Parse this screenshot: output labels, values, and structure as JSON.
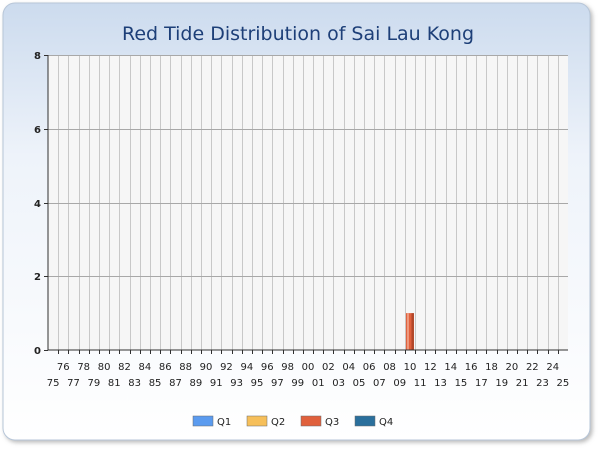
{
  "chart_data": {
    "type": "bar",
    "stacked": true,
    "title": "Red Tide Distribution of Sai Lau Kong",
    "xlabel": "",
    "ylabel": "",
    "ylim": [
      0,
      8
    ],
    "yticks": [
      "0",
      "2",
      "4",
      "6",
      "8"
    ],
    "categories": [
      "75",
      "76",
      "77",
      "78",
      "79",
      "80",
      "81",
      "82",
      "83",
      "84",
      "85",
      "86",
      "87",
      "88",
      "89",
      "90",
      "91",
      "92",
      "93",
      "94",
      "95",
      "96",
      "97",
      "98",
      "99",
      "00",
      "01",
      "02",
      "03",
      "04",
      "05",
      "06",
      "07",
      "08",
      "09",
      "10",
      "11",
      "12",
      "13",
      "14",
      "15",
      "16",
      "17",
      "18",
      "19",
      "20",
      "21",
      "22",
      "23",
      "24",
      "25"
    ],
    "series": [
      {
        "name": "Q1",
        "color": "#5b9bef",
        "values": [
          0,
          0,
          0,
          0,
          0,
          0,
          0,
          0,
          0,
          0,
          0,
          0,
          0,
          0,
          0,
          0,
          0,
          0,
          0,
          0,
          0,
          0,
          0,
          0,
          0,
          0,
          0,
          0,
          0,
          0,
          0,
          0,
          0,
          0,
          0,
          0,
          0,
          0,
          0,
          0,
          0,
          0,
          0,
          0,
          0,
          0,
          0,
          0,
          0,
          0,
          0
        ]
      },
      {
        "name": "Q2",
        "color": "#f6bf5a",
        "values": [
          0,
          0,
          0,
          0,
          0,
          0,
          0,
          0,
          0,
          0,
          0,
          0,
          0,
          0,
          0,
          0,
          0,
          0,
          0,
          0,
          0,
          0,
          0,
          0,
          0,
          0,
          0,
          0,
          0,
          0,
          0,
          0,
          0,
          0,
          0,
          0,
          0,
          0,
          0,
          0,
          0,
          0,
          0,
          0,
          0,
          0,
          0,
          0,
          0,
          0,
          0
        ]
      },
      {
        "name": "Q3",
        "color": "#e0603c",
        "values": [
          0,
          0,
          0,
          0,
          0,
          0,
          0,
          0,
          0,
          0,
          0,
          0,
          0,
          0,
          0,
          0,
          0,
          0,
          0,
          0,
          0,
          0,
          0,
          0,
          0,
          0,
          0,
          0,
          0,
          0,
          0,
          0,
          0,
          0,
          0,
          1,
          0,
          0,
          0,
          0,
          0,
          0,
          0,
          0,
          0,
          0,
          0,
          0,
          0,
          0,
          0
        ]
      },
      {
        "name": "Q4",
        "color": "#2a6f9c",
        "values": [
          0,
          0,
          0,
          0,
          0,
          0,
          0,
          0,
          0,
          0,
          0,
          0,
          0,
          0,
          0,
          0,
          0,
          0,
          0,
          0,
          0,
          0,
          0,
          0,
          0,
          0,
          0,
          0,
          0,
          0,
          0,
          0,
          0,
          0,
          0,
          0,
          0,
          0,
          0,
          0,
          0,
          0,
          0,
          0,
          0,
          0,
          0,
          0,
          0,
          0,
          0
        ]
      }
    ],
    "grid": true,
    "legend_position": "bottom"
  }
}
